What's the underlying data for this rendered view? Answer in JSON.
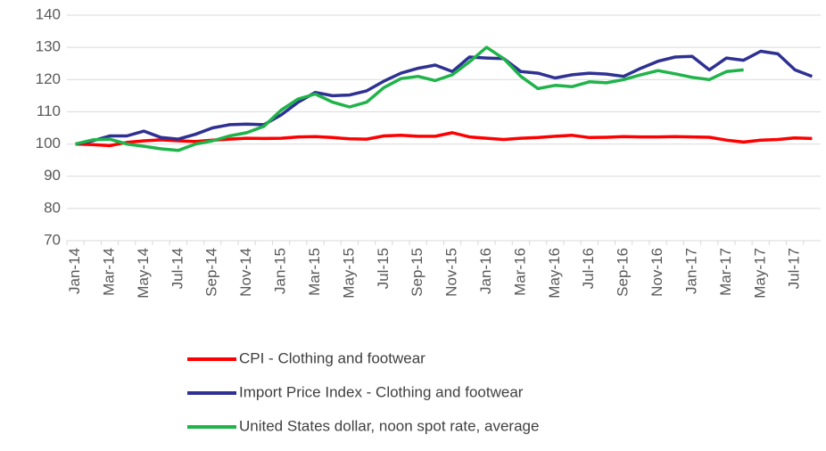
{
  "chart_data": {
    "type": "line",
    "categories": [
      "Jan-14",
      null,
      "Mar-14",
      null,
      "May-14",
      null,
      "Jul-14",
      null,
      "Sep-14",
      null,
      "Nov-14",
      null,
      "Jan-15",
      null,
      "Mar-15",
      null,
      "May-15",
      null,
      "Jul-15",
      null,
      "Sep-15",
      null,
      "Nov-15",
      null,
      "Jan-16",
      null,
      "Mar-16",
      null,
      "May-16",
      null,
      "Jul-16",
      null,
      "Sep-16",
      null,
      "Nov-16",
      null,
      "Jan-17",
      null,
      "Mar-17",
      null,
      "May-17",
      null,
      "Jul-17",
      null
    ],
    "series": [
      {
        "name": "CPI - Clothing and footwear",
        "color": "#ff0000",
        "values": [
          100,
          99.8,
          99.5,
          100.5,
          101,
          101.3,
          101,
          100.8,
          101.2,
          101.5,
          101.8,
          101.7,
          101.8,
          102.2,
          102.3,
          102,
          101.6,
          101.5,
          102.5,
          102.7,
          102.4,
          102.4,
          103.5,
          102.2,
          101.8,
          101.4,
          101.8,
          102,
          102.4,
          102.7,
          102,
          102.1,
          102.3,
          102.2,
          102.2,
          102.3,
          102.2,
          102.1,
          101.2,
          100.6,
          101.2,
          101.4,
          101.9,
          101.7
        ]
      },
      {
        "name": "Import Price Index - Clothing and footwear",
        "color": "#2e3192",
        "values": [
          100,
          101,
          102.5,
          102.5,
          104,
          102,
          101.5,
          103,
          105,
          106,
          106.2,
          106,
          109,
          113,
          116,
          115,
          115.2,
          116.5,
          119.5,
          122,
          123.5,
          124.5,
          122.5,
          127,
          126.7,
          126.5,
          122.5,
          122,
          120.5,
          121.5,
          122,
          121.7,
          121,
          123.5,
          125.7,
          127,
          127.2,
          123,
          126.7,
          126,
          128.8,
          128,
          123,
          121
        ]
      },
      {
        "name": "United States dollar, noon spot rate, average",
        "color": "#1fb34a",
        "values": [
          100,
          101.3,
          101.5,
          100,
          99.3,
          98.5,
          98,
          100,
          101,
          102.5,
          103.5,
          105.5,
          110.5,
          114,
          115.5,
          113,
          111.5,
          113,
          117.5,
          120.3,
          121,
          119.7,
          121.5,
          125.5,
          130,
          126.5,
          121,
          117.2,
          118.2,
          117.8,
          119.3,
          119,
          120,
          121.5,
          122.8,
          121.8,
          120.7,
          120,
          122.5,
          123,
          null,
          null,
          null,
          null
        ]
      }
    ],
    "ylim": [
      70,
      140
    ],
    "yticks": [
      70,
      80,
      90,
      100,
      110,
      120,
      130,
      140
    ],
    "grid": true
  }
}
